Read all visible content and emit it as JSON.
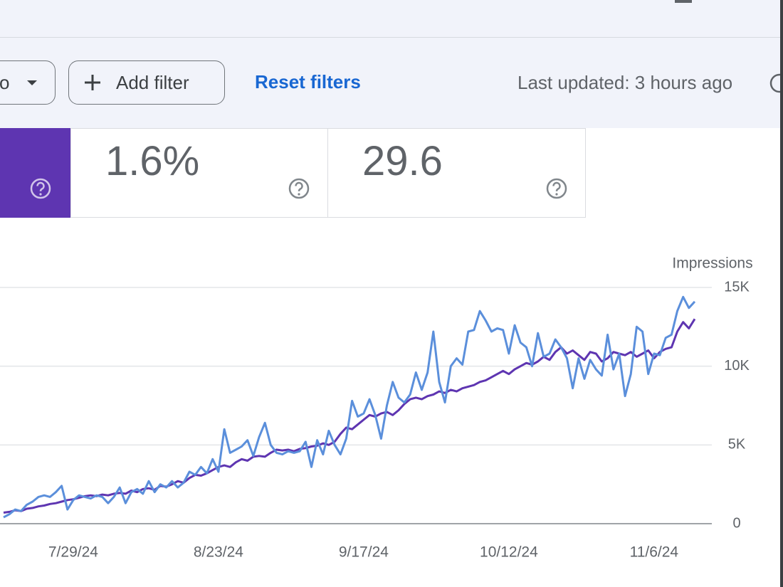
{
  "toolbar": {
    "chip_fragment": "o",
    "add_filter": "Add filter",
    "reset_filters": "Reset filters",
    "last_updated": "Last updated: 3 hours ago"
  },
  "metrics": [
    "1.6%",
    "29.6"
  ],
  "chart_data": {
    "type": "line",
    "y_axis_label": "Impressions",
    "categories": [
      null,
      null,
      null,
      null,
      null,
      null,
      null,
      null,
      null,
      null,
      null,
      null,
      "7/29/24",
      null,
      null,
      null,
      null,
      null,
      null,
      null,
      null,
      null,
      null,
      null,
      null,
      null,
      null,
      null,
      null,
      null,
      null,
      null,
      null,
      null,
      null,
      null,
      null,
      "8/23/24",
      null,
      null,
      null,
      null,
      null,
      null,
      null,
      null,
      null,
      null,
      null,
      null,
      null,
      null,
      null,
      null,
      null,
      null,
      null,
      null,
      null,
      null,
      null,
      null,
      "9/17/24",
      null,
      null,
      null,
      null,
      null,
      null,
      null,
      null,
      null,
      null,
      null,
      null,
      null,
      null,
      null,
      null,
      null,
      null,
      null,
      null,
      null,
      null,
      null,
      null,
      "10/12/24",
      null,
      null,
      null,
      null,
      null,
      null,
      null,
      null,
      null,
      null,
      null,
      null,
      null,
      null,
      null,
      null,
      null,
      null,
      null,
      null,
      null,
      null,
      null,
      null,
      "11/6/24",
      null,
      null,
      null,
      null,
      null,
      null,
      null
    ],
    "series": [
      {
        "color": "#5e35b1",
        "values": [
          700,
          750,
          850,
          800,
          950,
          1000,
          1100,
          1150,
          1250,
          1300,
          1400,
          1500,
          1550,
          1650,
          1750,
          1800,
          1750,
          1850,
          1800,
          1900,
          1950,
          1900,
          2100,
          2000,
          2200,
          2250,
          2150,
          2400,
          2350,
          2500,
          2700,
          2600,
          2900,
          3100,
          3050,
          3200,
          3400,
          3600,
          3700,
          3600,
          3900,
          4100,
          4000,
          4250,
          4300,
          4250,
          4500,
          4700,
          4650,
          4700,
          4600,
          4750,
          4800,
          4900,
          4950,
          5100,
          5000,
          5200,
          5700,
          6100,
          6000,
          6300,
          6600,
          6900,
          6800,
          7000,
          7100,
          6900,
          7200,
          7600,
          7900,
          8000,
          7900,
          8100,
          8200,
          8400,
          8300,
          8500,
          8400,
          8600,
          8700,
          8800,
          9000,
          9100,
          9300,
          9500,
          9700,
          9500,
          9800,
          10000,
          10200,
          10100,
          10300,
          10600,
          10400,
          10900,
          11200,
          10800,
          11000,
          10700,
          10400,
          10900,
          10800,
          10300,
          10500,
          10900,
          10800,
          10700,
          10900,
          10600,
          10800,
          11000,
          10500,
          10900,
          11100,
          11200,
          12200,
          12800,
          12400,
          13000
        ]
      },
      {
        "color": "#5b8fdb",
        "values": [
          400,
          600,
          900,
          800,
          1200,
          1400,
          1700,
          1800,
          1700,
          2000,
          2400,
          900,
          1500,
          1800,
          1700,
          1600,
          1800,
          1700,
          1300,
          1700,
          2300,
          1300,
          2000,
          2200,
          1900,
          2700,
          2000,
          2500,
          2300,
          2700,
          2300,
          2600,
          3300,
          3100,
          3600,
          3200,
          4100,
          3300,
          6000,
          4500,
          4700,
          4900,
          5300,
          4300,
          5500,
          6400,
          5000,
          4500,
          4400,
          4600,
          4500,
          4600,
          5200,
          3600,
          5300,
          4400,
          5900,
          5000,
          4400,
          5400,
          7800,
          6800,
          7000,
          7900,
          6900,
          5400,
          7500,
          9000,
          8000,
          7700,
          8200,
          9600,
          8500,
          9600,
          12200,
          9000,
          7700,
          10000,
          10500,
          10100,
          12200,
          12300,
          13500,
          12900,
          12200,
          12400,
          12300,
          10800,
          12600,
          11500,
          11200,
          10000,
          12100,
          10600,
          10800,
          11700,
          11200,
          10500,
          8600,
          10500,
          9200,
          10400,
          9800,
          9400,
          12000,
          9800,
          10800,
          8100,
          9500,
          12500,
          12200,
          9500,
          10800,
          10700,
          11800,
          12000,
          13500,
          14400,
          13700,
          14100
        ]
      }
    ],
    "ylim": [
      0,
      15000
    ],
    "yticks": [
      0,
      {
        "value": 5000,
        "label": "5K"
      },
      {
        "value": 10000,
        "label": "10K"
      },
      {
        "value": 15000,
        "label": "15K"
      }
    ],
    "grid": true
  }
}
